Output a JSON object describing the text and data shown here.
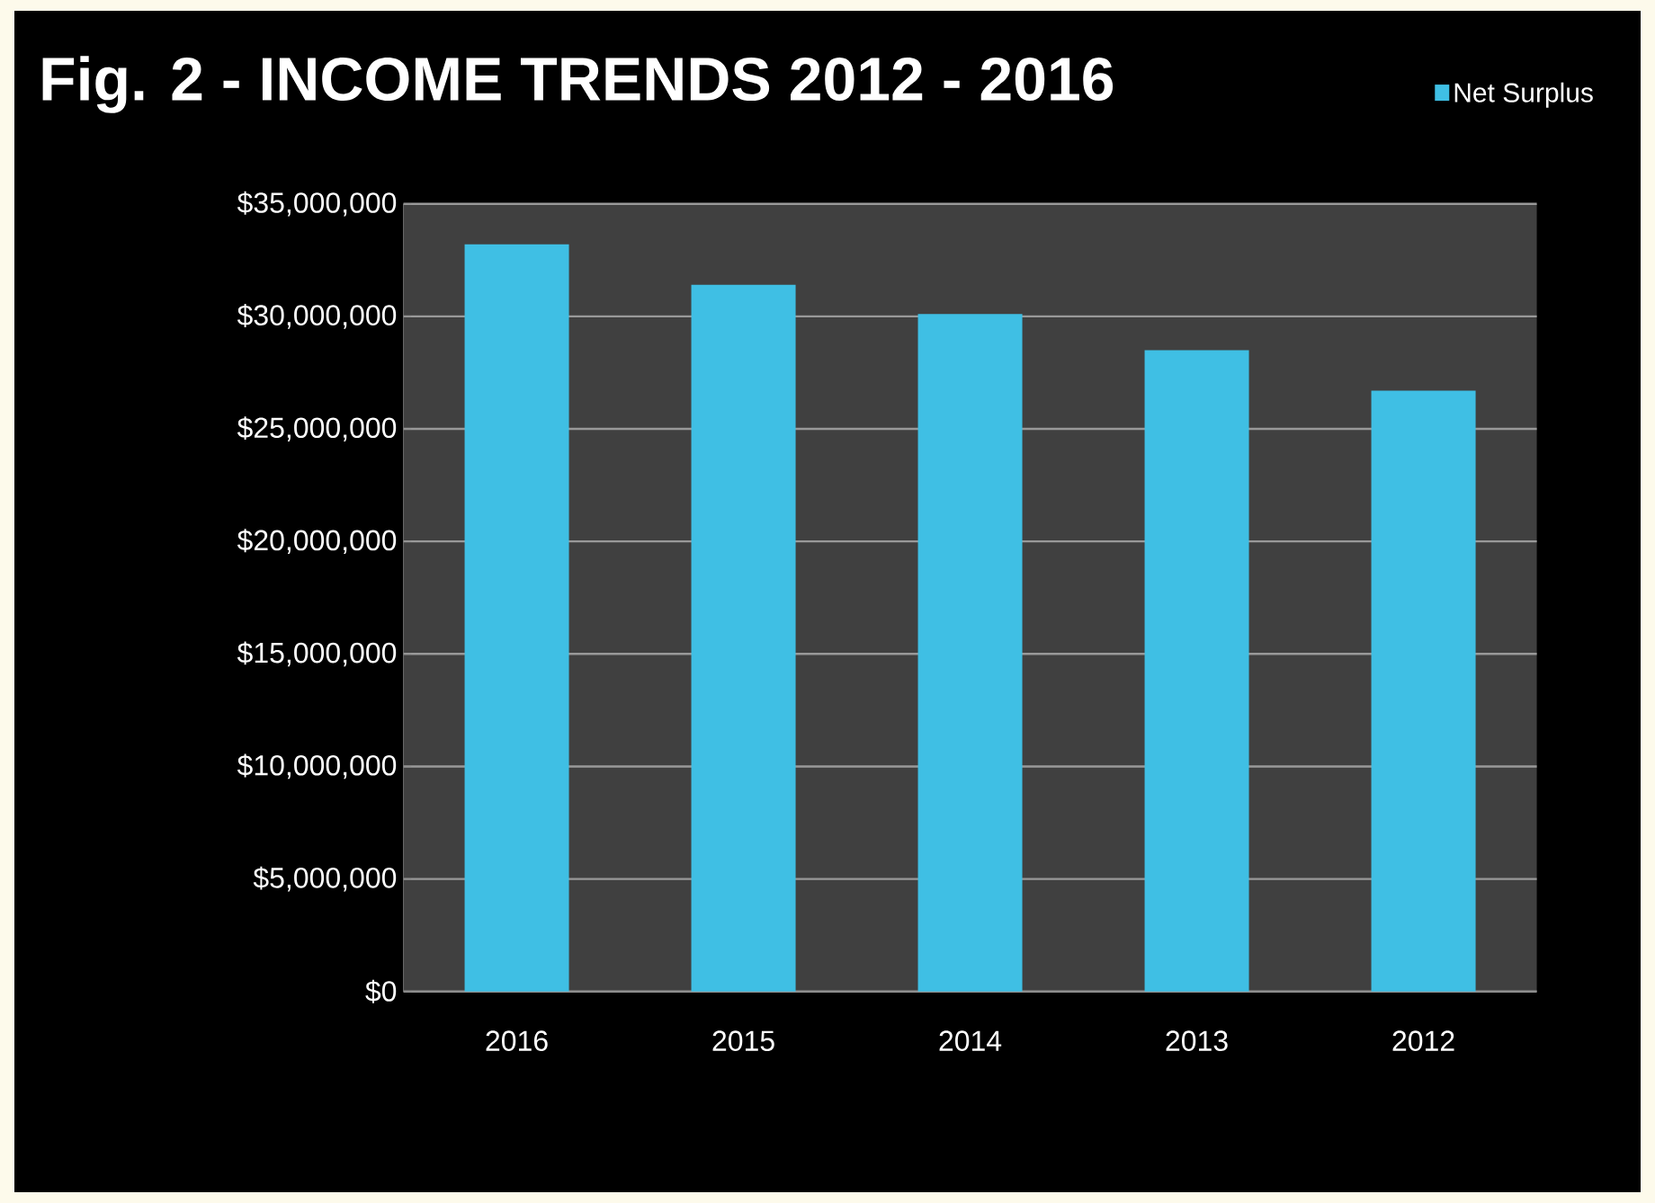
{
  "chart_data": {
    "type": "bar",
    "title": "Fig. 2 - INCOME TRENDS  2012 - 2016",
    "categories": [
      "2016",
      "2015",
      "2014",
      "2013",
      "2012"
    ],
    "series": [
      {
        "name": "Net Surplus",
        "color": "#3fbfe4",
        "values": [
          33200000,
          31400000,
          30100000,
          28500000,
          26700000
        ]
      }
    ],
    "ylim": [
      0,
      35000000
    ],
    "yticks": [
      {
        "value": 0,
        "label": "$0"
      },
      {
        "value": 5000000,
        "label": "$5,000,000"
      },
      {
        "value": 10000000,
        "label": "$10,000,000"
      },
      {
        "value": 15000000,
        "label": "$15,000,000"
      },
      {
        "value": 20000000,
        "label": "$20,000,000"
      },
      {
        "value": 25000000,
        "label": "$25,000,000"
      },
      {
        "value": 30000000,
        "label": "$30,000,000"
      },
      {
        "value": 35000000,
        "label": "$35,000,000"
      }
    ],
    "grid": "y",
    "legend": "top right"
  }
}
